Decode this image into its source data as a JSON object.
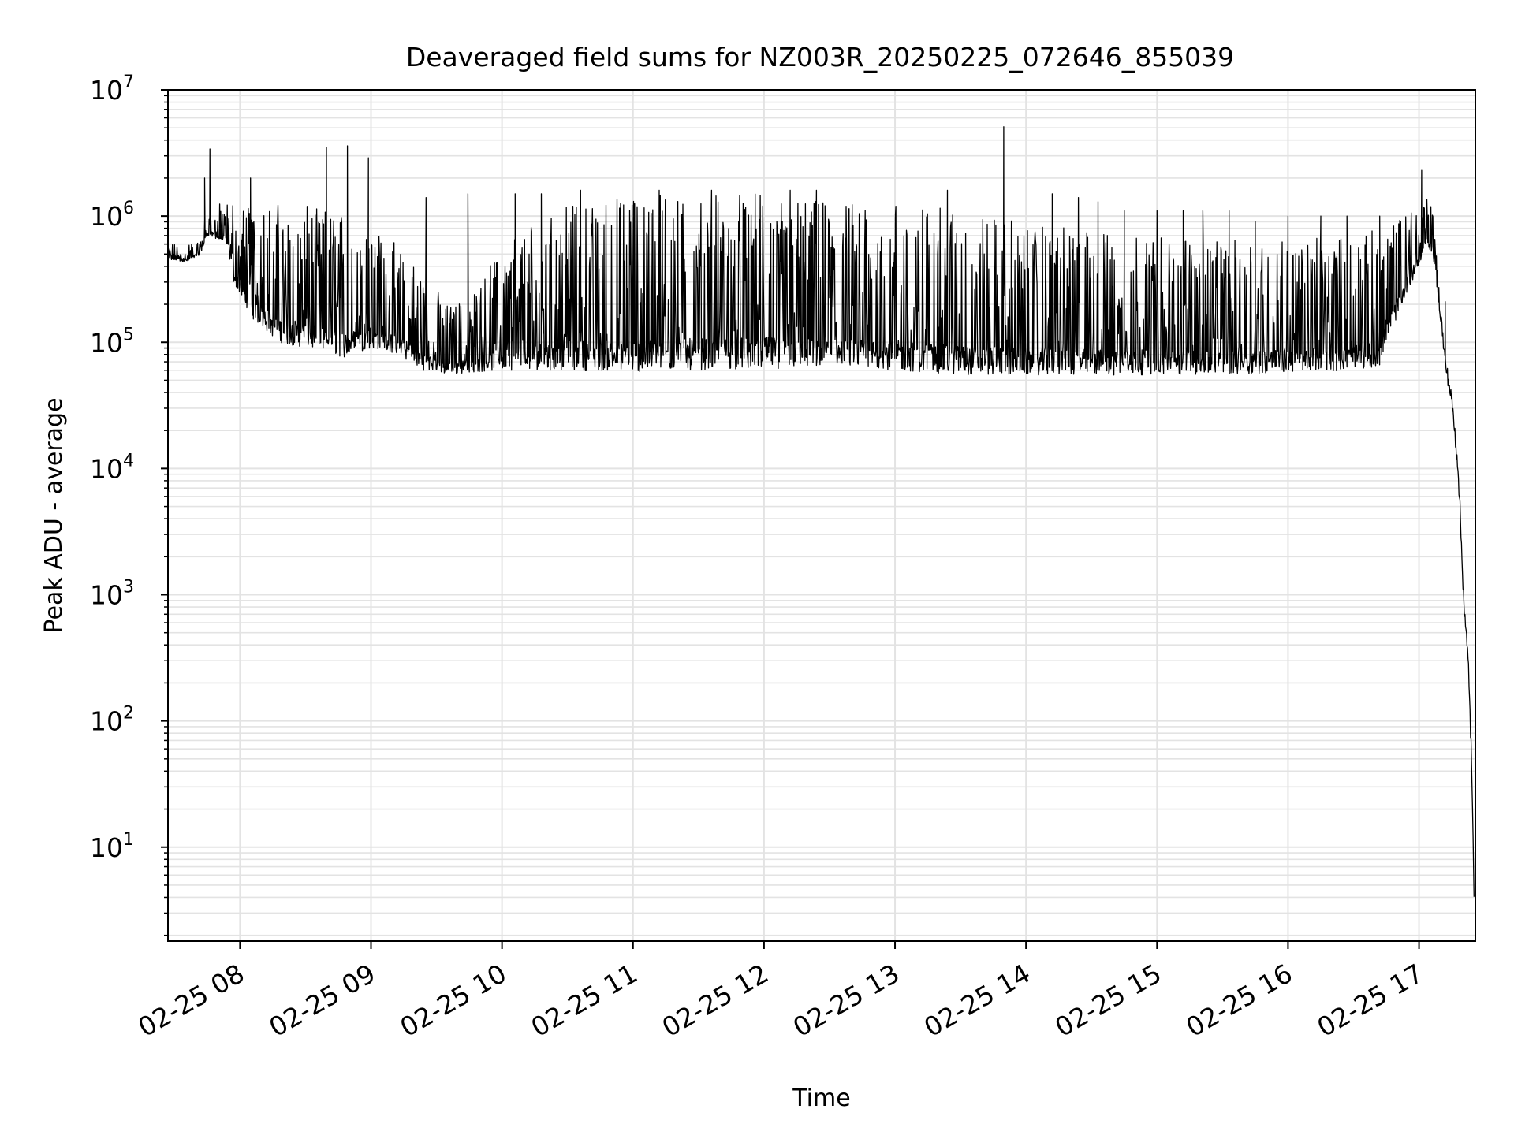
{
  "chart_data": {
    "type": "line",
    "title": "Deaveraged field sums for NZ003R_20250225_072646_855039",
    "xlabel": "Time",
    "ylabel": "Peak ADU - average",
    "yscale": "log",
    "ylim": [
      1.8,
      10000000
    ],
    "xlim_hours": [
      7.45,
      17.43
    ],
    "grid": true,
    "line_color": "#000000",
    "grid_color": "#e3e3e3",
    "x_ticks": [
      {
        "hour": 8,
        "label": "02-25 08"
      },
      {
        "hour": 9,
        "label": "02-25 09"
      },
      {
        "hour": 10,
        "label": "02-25 10"
      },
      {
        "hour": 11,
        "label": "02-25 11"
      },
      {
        "hour": 12,
        "label": "02-25 12"
      },
      {
        "hour": 13,
        "label": "02-25 13"
      },
      {
        "hour": 14,
        "label": "02-25 14"
      },
      {
        "hour": 15,
        "label": "02-25 15"
      },
      {
        "hour": 16,
        "label": "02-25 16"
      },
      {
        "hour": 17,
        "label": "02-25 17"
      }
    ],
    "y_ticks": [
      {
        "value": 10,
        "base": "10",
        "exp": "1"
      },
      {
        "value": 100,
        "base": "10",
        "exp": "2"
      },
      {
        "value": 1000,
        "base": "10",
        "exp": "3"
      },
      {
        "value": 10000,
        "base": "10",
        "exp": "4"
      },
      {
        "value": 100000,
        "base": "10",
        "exp": "5"
      },
      {
        "value": 1000000,
        "base": "10",
        "exp": "6"
      },
      {
        "value": 10000000,
        "base": "10",
        "exp": "7"
      }
    ],
    "series": [
      {
        "name": "Peak ADU - average",
        "envelope_note": "approximate floor / ceiling of dense noisy trace (hour, value)",
        "floor": [
          [
            7.45,
            450000
          ],
          [
            7.6,
            430000
          ],
          [
            7.7,
            500000
          ],
          [
            7.75,
            700000
          ],
          [
            7.9,
            600000
          ],
          [
            7.95,
            300000
          ],
          [
            8.1,
            150000
          ],
          [
            8.3,
            100000
          ],
          [
            8.6,
            85000
          ],
          [
            8.8,
            75000
          ],
          [
            9.0,
            90000
          ],
          [
            9.2,
            80000
          ],
          [
            9.4,
            60000
          ],
          [
            9.6,
            55000
          ],
          [
            9.8,
            58000
          ],
          [
            10.0,
            60000
          ],
          [
            10.5,
            60000
          ],
          [
            11.0,
            58000
          ],
          [
            11.5,
            60000
          ],
          [
            12.0,
            62000
          ],
          [
            12.5,
            62000
          ],
          [
            13.0,
            60000
          ],
          [
            13.5,
            55000
          ],
          [
            14.0,
            55000
          ],
          [
            14.5,
            55000
          ],
          [
            15.0,
            55000
          ],
          [
            15.5,
            55000
          ],
          [
            16.0,
            58000
          ],
          [
            16.5,
            60000
          ],
          [
            16.7,
            65000
          ],
          [
            16.85,
            180000
          ],
          [
            17.0,
            400000
          ],
          [
            17.06,
            600000
          ],
          [
            17.1,
            500000
          ],
          [
            17.15,
            200000
          ],
          [
            17.2,
            60000
          ],
          [
            17.25,
            30000
          ],
          [
            17.3,
            8000
          ],
          [
            17.33,
            1500
          ],
          [
            17.35,
            500
          ],
          [
            17.38,
            200
          ],
          [
            17.4,
            40
          ],
          [
            17.42,
            4
          ]
        ],
        "ceiling": [
          [
            7.45,
            600000
          ],
          [
            7.6,
            600000
          ],
          [
            7.7,
            700000
          ],
          [
            7.75,
            1200000
          ],
          [
            7.9,
            1300000
          ],
          [
            8.1,
            1300000
          ],
          [
            8.5,
            1200000
          ],
          [
            8.8,
            1100000
          ],
          [
            9.0,
            900000
          ],
          [
            9.2,
            600000
          ],
          [
            9.4,
            350000
          ],
          [
            9.6,
            200000
          ],
          [
            9.8,
            250000
          ],
          [
            10.0,
            600000
          ],
          [
            10.3,
            1000000
          ],
          [
            10.6,
            1300000
          ],
          [
            11.0,
            1500000
          ],
          [
            11.5,
            1550000
          ],
          [
            12.0,
            1500000
          ],
          [
            12.5,
            1300000
          ],
          [
            13.0,
            1300000
          ],
          [
            13.5,
            1100000
          ],
          [
            14.0,
            900000
          ],
          [
            14.5,
            750000
          ],
          [
            15.0,
            700000
          ],
          [
            15.5,
            650000
          ],
          [
            16.0,
            650000
          ],
          [
            16.5,
            700000
          ],
          [
            16.8,
            900000
          ],
          [
            17.0,
            1400000
          ],
          [
            17.06,
            1600000
          ],
          [
            17.1,
            1300000
          ],
          [
            17.15,
            300000
          ],
          [
            17.2,
            80000
          ],
          [
            17.25,
            40000
          ],
          [
            17.3,
            12000
          ],
          [
            17.33,
            2000
          ],
          [
            17.35,
            800
          ],
          [
            17.38,
            300
          ],
          [
            17.4,
            60
          ],
          [
            17.42,
            5
          ]
        ],
        "spikes": [
          [
            7.77,
            3400000
          ],
          [
            7.73,
            2000000
          ],
          [
            8.08,
            2000000
          ],
          [
            8.82,
            3600000
          ],
          [
            8.66,
            3500000
          ],
          [
            8.98,
            2900000
          ],
          [
            9.74,
            1500000
          ],
          [
            9.42,
            1400000
          ],
          [
            10.1,
            1500000
          ],
          [
            10.3,
            1500000
          ],
          [
            10.6,
            1600000
          ],
          [
            11.2,
            1600000
          ],
          [
            11.6,
            1600000
          ],
          [
            12.2,
            1600000
          ],
          [
            12.4,
            1600000
          ],
          [
            13.4,
            1600000
          ],
          [
            13.83,
            5100000
          ],
          [
            14.2,
            1500000
          ],
          [
            14.4,
            1400000
          ],
          [
            14.55,
            1300000
          ],
          [
            14.75,
            1100000
          ],
          [
            15.0,
            1100000
          ],
          [
            15.2,
            1100000
          ],
          [
            15.35,
            1100000
          ],
          [
            15.55,
            1100000
          ],
          [
            15.75,
            900000
          ],
          [
            16.0,
            1000000
          ],
          [
            16.25,
            1000000
          ],
          [
            16.45,
            1000000
          ],
          [
            16.7,
            1000000
          ],
          [
            17.02,
            2300000
          ],
          [
            17.2,
            210000
          ]
        ]
      }
    ]
  }
}
